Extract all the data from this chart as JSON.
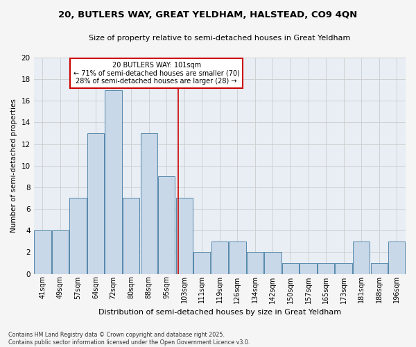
{
  "title_line1": "20, BUTLERS WAY, GREAT YELDHAM, HALSTEAD, CO9 4QN",
  "title_line2": "Size of property relative to semi-detached houses in Great Yeldham",
  "xlabel": "Distribution of semi-detached houses by size in Great Yeldham",
  "ylabel": "Number of semi-detached properties",
  "footnote": "Contains HM Land Registry data © Crown copyright and database right 2025.\nContains public sector information licensed under the Open Government Licence v3.0.",
  "categories": [
    "41sqm",
    "49sqm",
    "57sqm",
    "64sqm",
    "72sqm",
    "80sqm",
    "88sqm",
    "95sqm",
    "103sqm",
    "111sqm",
    "119sqm",
    "126sqm",
    "134sqm",
    "142sqm",
    "150sqm",
    "157sqm",
    "165sqm",
    "173sqm",
    "181sqm",
    "188sqm",
    "196sqm"
  ],
  "values": [
    4,
    4,
    7,
    13,
    17,
    7,
    13,
    9,
    7,
    2,
    3,
    3,
    2,
    2,
    1,
    1,
    1,
    1,
    3,
    1,
    3
  ],
  "bar_color": "#c8d8e8",
  "bar_edge_color": "#5588aa",
  "grid_color": "#cccccc",
  "bg_color": "#e8eef4",
  "vline_x": 7.65,
  "vline_color": "#cc0000",
  "annotation_title": "20 BUTLERS WAY: 101sqm",
  "annotation_line1": "← 71% of semi-detached houses are smaller (70)",
  "annotation_line2": "28% of semi-detached houses are larger (28) →",
  "annotation_box_color": "#cc0000",
  "ylim": [
    0,
    20
  ],
  "yticks": [
    0,
    2,
    4,
    6,
    8,
    10,
    12,
    14,
    16,
    18,
    20
  ],
  "fig_width": 6.0,
  "fig_height": 5.0,
  "fig_bg_color": "#f5f5f5"
}
